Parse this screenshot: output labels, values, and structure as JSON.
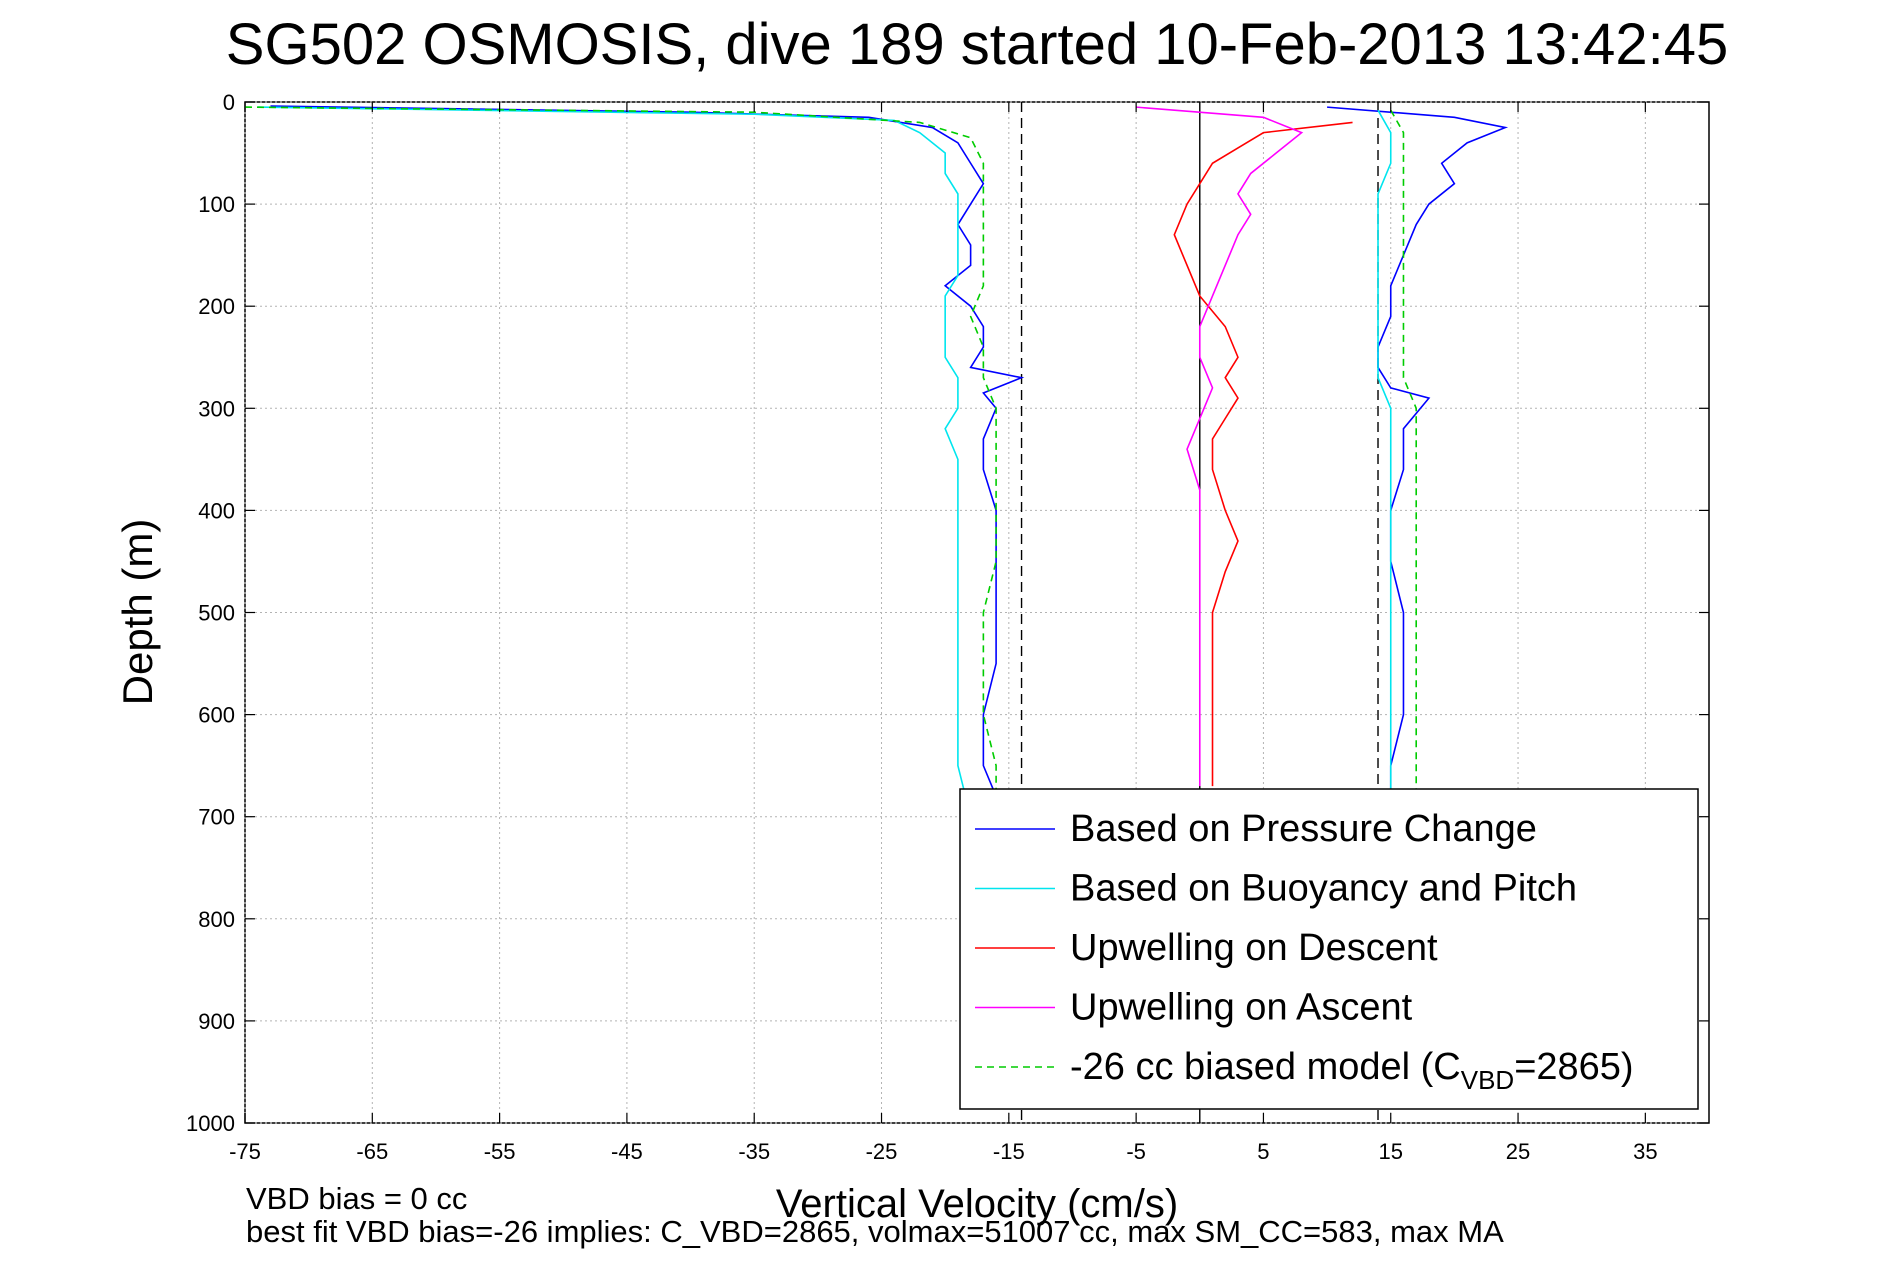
{
  "chart_data": {
    "type": "line",
    "title": "SG502 OSMOSIS, dive 189 started 10-Feb-2013 13:42:45",
    "xlabel": "Vertical Velocity (cm/s)",
    "ylabel": "Depth (m)",
    "xlim": [
      -75,
      40
    ],
    "ylim": [
      0,
      1000
    ],
    "y_reversed": true,
    "grid": true,
    "x_ticks": [
      -75,
      -65,
      -55,
      -45,
      -35,
      -25,
      -15,
      -5,
      5,
      15,
      25,
      35
    ],
    "y_ticks": [
      0,
      100,
      200,
      300,
      400,
      500,
      600,
      700,
      800,
      900,
      1000
    ],
    "reference_lines": [
      {
        "x": -14,
        "style": "dashed",
        "color": "#000000"
      },
      {
        "x": 0,
        "style": "solid",
        "color": "#000000"
      },
      {
        "x": 14,
        "style": "dashed",
        "color": "#000000"
      }
    ],
    "legend": {
      "placement": "bottom-right"
    },
    "series": [
      {
        "name": "Based on Pressure Change",
        "color": "#0000ff",
        "style": "solid",
        "points": [
          [
            -73,
            4
          ],
          [
            -40,
            10
          ],
          [
            -26,
            15
          ],
          [
            -21,
            25
          ],
          [
            -19,
            40
          ],
          [
            -18,
            60
          ],
          [
            -17,
            80
          ],
          [
            -18,
            100
          ],
          [
            -19,
            120
          ],
          [
            -18,
            140
          ],
          [
            -18,
            160
          ],
          [
            -20,
            180
          ],
          [
            -18,
            200
          ],
          [
            -17,
            220
          ],
          [
            -17,
            240
          ],
          [
            -18,
            260
          ],
          [
            -14,
            270
          ],
          [
            -17,
            285
          ],
          [
            -16,
            300
          ],
          [
            -17,
            330
          ],
          [
            -17,
            360
          ],
          [
            -16,
            400
          ],
          [
            -16,
            450
          ],
          [
            -16,
            500
          ],
          [
            -16,
            550
          ],
          [
            -17,
            600
          ],
          [
            -17,
            650
          ],
          [
            -16,
            680
          ],
          [
            -16,
            700
          ]
        ]
      },
      {
        "name": "Based on Buoyancy and Pitch",
        "color": "#00e5ee",
        "style": "solid",
        "points": [
          [
            -74,
            5
          ],
          [
            -35,
            12
          ],
          [
            -24,
            18
          ],
          [
            -22,
            30
          ],
          [
            -20,
            50
          ],
          [
            -20,
            70
          ],
          [
            -19,
            90
          ],
          [
            -19,
            110
          ],
          [
            -19,
            130
          ],
          [
            -19,
            150
          ],
          [
            -19,
            170
          ],
          [
            -20,
            190
          ],
          [
            -20,
            210
          ],
          [
            -20,
            230
          ],
          [
            -20,
            250
          ],
          [
            -19,
            270
          ],
          [
            -19,
            290
          ],
          [
            -19,
            300
          ],
          [
            -20,
            320
          ],
          [
            -19,
            350
          ],
          [
            -19,
            400
          ],
          [
            -19,
            450
          ],
          [
            -19,
            500
          ],
          [
            -19,
            550
          ],
          [
            -19,
            600
          ],
          [
            -19,
            650
          ],
          [
            -18,
            700
          ]
        ]
      },
      {
        "name": "Upwelling on Descent",
        "color": "#ff0000",
        "style": "solid",
        "points": [
          [
            12,
            20
          ],
          [
            5,
            30
          ],
          [
            3,
            45
          ],
          [
            1,
            60
          ],
          [
            0,
            80
          ],
          [
            -1,
            100
          ],
          [
            -2,
            130
          ],
          [
            -1,
            160
          ],
          [
            0,
            190
          ],
          [
            2,
            220
          ],
          [
            3,
            250
          ],
          [
            2,
            270
          ],
          [
            3,
            290
          ],
          [
            2,
            310
          ],
          [
            1,
            330
          ],
          [
            1,
            360
          ],
          [
            2,
            400
          ],
          [
            3,
            430
          ],
          [
            2,
            460
          ],
          [
            1,
            500
          ],
          [
            1,
            550
          ],
          [
            1,
            600
          ],
          [
            1,
            640
          ],
          [
            1,
            670
          ]
        ]
      },
      {
        "name": "Upwelling on Ascent",
        "color": "#ff00ff",
        "style": "solid",
        "points": [
          [
            -5,
            5
          ],
          [
            5,
            15
          ],
          [
            8,
            30
          ],
          [
            6,
            50
          ],
          [
            4,
            70
          ],
          [
            3,
            90
          ],
          [
            4,
            110
          ],
          [
            3,
            130
          ],
          [
            2,
            160
          ],
          [
            1,
            190
          ],
          [
            0,
            220
          ],
          [
            0,
            250
          ],
          [
            1,
            280
          ],
          [
            0,
            310
          ],
          [
            -1,
            340
          ],
          [
            0,
            380
          ],
          [
            0,
            420
          ],
          [
            0,
            460
          ],
          [
            0,
            500
          ],
          [
            0,
            550
          ],
          [
            0,
            600
          ],
          [
            0,
            650
          ],
          [
            0,
            670
          ]
        ]
      },
      {
        "name": "-26 cc biased model (C",
        "color": "#00cc00",
        "style": "dashed",
        "points": [
          [
            -75,
            5
          ],
          [
            -35,
            10
          ],
          [
            -22,
            20
          ],
          [
            -18,
            35
          ],
          [
            -17,
            60
          ],
          [
            -17,
            90
          ],
          [
            -17,
            120
          ],
          [
            -17,
            150
          ],
          [
            -17,
            180
          ],
          [
            -18,
            210
          ],
          [
            -17,
            240
          ],
          [
            -17,
            270
          ],
          [
            -16,
            300
          ],
          [
            -16,
            340
          ],
          [
            -16,
            400
          ],
          [
            -16,
            450
          ],
          [
            -17,
            500
          ],
          [
            -17,
            550
          ],
          [
            -17,
            600
          ],
          [
            -16,
            650
          ],
          [
            -16,
            680
          ]
        ]
      },
      {
        "name": "",
        "color": "#0000ff",
        "style": "solid",
        "points": [
          [
            10,
            5
          ],
          [
            20,
            15
          ],
          [
            24,
            25
          ],
          [
            21,
            40
          ],
          [
            19,
            60
          ],
          [
            20,
            80
          ],
          [
            18,
            100
          ],
          [
            17,
            120
          ],
          [
            16,
            150
          ],
          [
            15,
            180
          ],
          [
            15,
            210
          ],
          [
            14,
            240
          ],
          [
            14,
            260
          ],
          [
            15,
            280
          ],
          [
            18,
            290
          ],
          [
            16,
            320
          ],
          [
            16,
            360
          ],
          [
            15,
            400
          ],
          [
            15,
            450
          ],
          [
            16,
            500
          ],
          [
            16,
            550
          ],
          [
            16,
            600
          ],
          [
            15,
            650
          ],
          [
            15,
            680
          ]
        ]
      },
      {
        "name": "",
        "color": "#00e5ee",
        "style": "solid",
        "points": [
          [
            14,
            8
          ],
          [
            15,
            30
          ],
          [
            15,
            60
          ],
          [
            14,
            90
          ],
          [
            14,
            120
          ],
          [
            14,
            150
          ],
          [
            14,
            180
          ],
          [
            14,
            210
          ],
          [
            14,
            240
          ],
          [
            14,
            270
          ],
          [
            15,
            300
          ],
          [
            15,
            350
          ],
          [
            15,
            400
          ],
          [
            15,
            450
          ],
          [
            15,
            500
          ],
          [
            15,
            550
          ],
          [
            15,
            600
          ],
          [
            15,
            650
          ],
          [
            15,
            680
          ]
        ]
      },
      {
        "name": "",
        "color": "#00cc00",
        "style": "dashed",
        "points": [
          [
            15,
            8
          ],
          [
            16,
            30
          ],
          [
            16,
            60
          ],
          [
            16,
            90
          ],
          [
            16,
            120
          ],
          [
            16,
            150
          ],
          [
            16,
            180
          ],
          [
            16,
            210
          ],
          [
            16,
            240
          ],
          [
            16,
            270
          ],
          [
            17,
            300
          ],
          [
            17,
            350
          ],
          [
            17,
            400
          ],
          [
            17,
            450
          ],
          [
            17,
            500
          ],
          [
            17,
            550
          ],
          [
            17,
            600
          ],
          [
            17,
            650
          ],
          [
            17,
            680
          ]
        ]
      }
    ],
    "legend_entries": [
      {
        "text": "Based on Pressure Change",
        "color": "#0000ff",
        "style": "solid"
      },
      {
        "text": "Based on Buoyancy and Pitch",
        "color": "#00e5ee",
        "style": "solid"
      },
      {
        "text": "Upwelling on Descent",
        "color": "#ff0000",
        "style": "solid"
      },
      {
        "text": "Upwelling on Ascent",
        "color": "#ff00ff",
        "style": "solid"
      },
      {
        "text": "-26 cc biased model (C",
        "sub": "VBD",
        "suffix": "=2865)",
        "color": "#00cc00",
        "style": "dashed"
      }
    ],
    "annotations": [
      "VBD bias = 0 cc",
      "best fit VBD bias=-26 implies: C_VBD=2865, volmax=51007 cc, max SM_CC=583, max MA"
    ]
  }
}
